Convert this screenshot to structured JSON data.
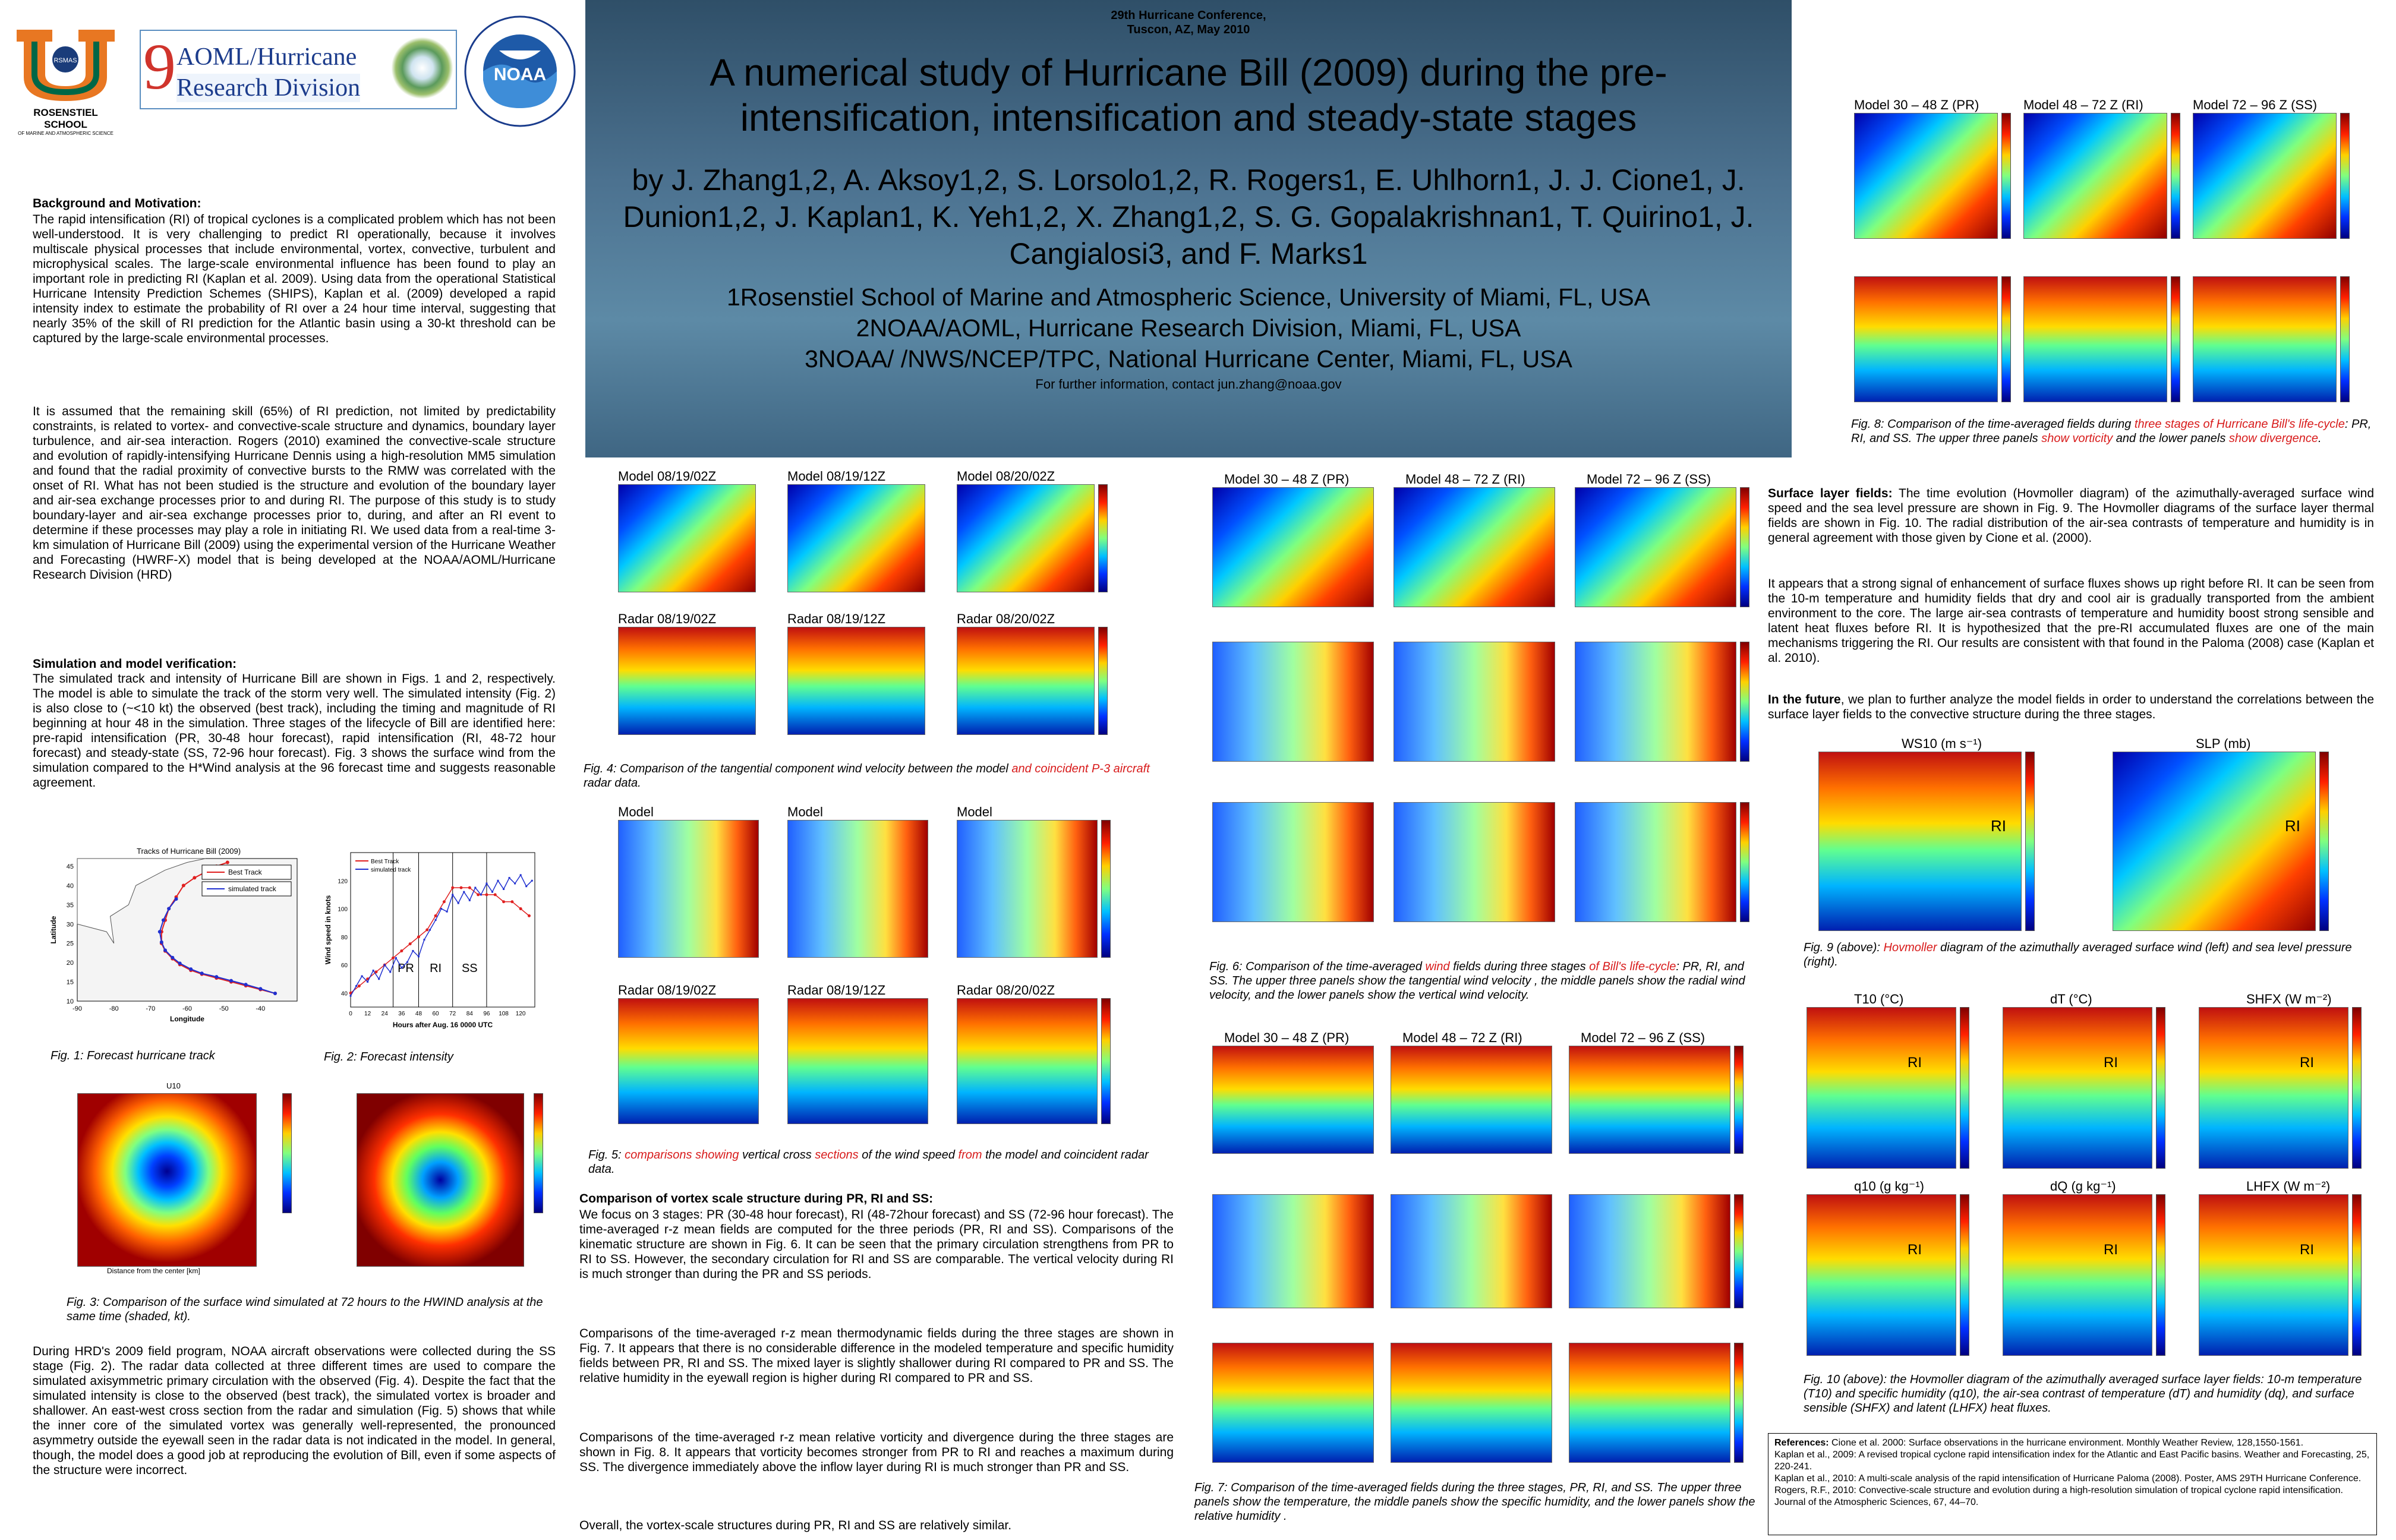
{
  "header": {
    "conference_line1": "29th Hurricane Conference,",
    "conference_line2": "Tuscon, AZ, May 2010",
    "title_line1": "A numerical study of Hurricane Bill (2009) during the pre-",
    "title_line2": "intensification, intensification and steady-state stages",
    "authors_line1": "by  J. Zhang1,2, A. Aksoy1,2, S. Lorsolo1,2, R. Rogers1, E. Uhlhorn1, J. J. Cione1, J.",
    "authors_line2": "Dunion1,2, J. Kaplan1, K. Yeh1,2, X. Zhang1,2, S. G. Gopalakrishnan1, T. Quirino1, J.",
    "authors_line3": "Cangialosi3, and F. Marks1",
    "aff1": "1Rosenstiel School of Marine and Atmospheric Science, University of Miami, FL, USA",
    "aff2": "2NOAA/AOML, Hurricane Research Division, Miami, FL, USA",
    "aff3": "3NOAA/ /NWS/NCEP/TPC, National Hurricane Center, Miami, FL, USA",
    "contact": "For further information, contact jun.zhang@noaa.gov"
  },
  "logos": {
    "rsmas_text": "RSMAS",
    "rosenstiel": "ROSENSTIEL SCHOOL",
    "rosenstiel_sub": "OF MARINE AND ATMOSPHERIC SCIENCE",
    "aoml_line1": "AOML/Hurricane",
    "aoml_line2": "Research Division",
    "noaa": "NOAA"
  },
  "left": {
    "bg_heading": "Background and  Motivation:",
    "bg_p1": "The rapid intensification (RI) of tropical cyclones  is a complicated problem which has not been well-understood.  It is very challenging to predict RI operationally, because it involves multiscale physical processes that include environmental, vortex, convective, turbulent and microphysical scales. The large-scale environmental influence has been found to play an important role in predicting RI (Kaplan et al. 2009). Using data  from the operational Statistical Hurricane Intensity Prediction Schemes (SHIPS), Kaplan et al. (2009) developed a rapid intensity index to estimate the probability of RI over a 24 hour time interval, suggesting that nearly 35% of the skill of RI prediction for the Atlantic basin using a 30-kt threshold can be captured by the large-scale  environmental processes.",
    "bg_p2": "It is assumed that the remaining skill (65%) of RI prediction, not limited by predictability constraints, is related to vortex- and convective-scale structure and dynamics, boundary layer turbulence, and air-sea interaction. Rogers (2010) examined the convective-scale structure and evolution of rapidly-intensifying Hurricane Dennis using a high-resolution MM5 simulation and found that the radial proximity of convective bursts to the RMW was correlated with the onset of RI. What has not been studied is the structure and evolution of the boundary layer and air-sea exchange processes prior to and during RI. The purpose of this study is to study boundary-layer and air-sea exchange processes prior to, during, and after an RI event to determine if these processes may play a role in initiating RI. We used data from a real-time 3-km simulation of Hurricane Bill (2009) using the experimental version of the Hurricane Weather and Forecasting (HWRF-X) model that is being developed at the NOAA/AOML/Hurricane Research Division (HRD)",
    "sim_heading": "Simulation and model verification:",
    "sim_p": "The simulated track and intensity of Hurricane Bill are shown in Figs. 1 and 2, respectively.  The model is able to simulate the track of the storm very well. The simulated intensity (Fig. 2) is also close to (~<10 kt) the observed (best track), including the timing and magnitude of RI beginning at hour 48 in the simulation. Three stages of the lifecycle of Bill are identified here: pre-rapid intensification (PR, 30-48 hour forecast), rapid intensification (RI, 48-72 hour forecast) and steady-state (SS, 72-96 hour forecast). Fig. 3 shows the surface wind from the simulation compared to the H*Wind analysis at the 96 forecast time and suggests reasonable agreement.",
    "fig1_cap": "Fig. 1: Forecast hurricane track",
    "fig2_cap": "Fig. 2: Forecast intensity",
    "fig3_cap": "Fig. 3: Comparison of the surface wind  simulated at 72 hours to the HWIND analysis at the same time (shaded, kt).",
    "hrd_p": "During HRD's 2009 field program, NOAA aircraft observations were collected during the SS stage (Fig. 2). The radar data collected at three different times are used to compare the simulated axisymmetric primary circulation with the observed (Fig. 4). Despite the fact that the simulated intensity is close to the observed (best track), the simulated vortex is broader and shallower. An east-west cross section from the radar and simulation (Fig. 5) shows that while the inner core of the simulated vortex was generally well-represented, the pronounced asymmetry outside the eyewall seen in the radar data is not indicated in the model. In general, though, the model does a good job at reproducing the evolution of Bill, even if some aspects of the structure were incorrect.",
    "fig1_title": "Tracks of Hurricane Bill (2009)",
    "fig1_legend_best": "Best Track",
    "fig1_legend_sim": "simulated track",
    "fig1_xlabel": "Longitude",
    "fig1_ylabel": "Latitude",
    "fig2_ylabel": "Wind speed in knots",
    "fig2_xlabel": "Hours after Aug. 16 0000 UTC",
    "fig2_pr": "PR",
    "fig2_ri": "RI",
    "fig2_ss": "SS",
    "fig3_title": "U10",
    "fig3_xlabel": "Distance from the center [km]"
  },
  "fig1_chart": {
    "type": "line",
    "title": "Tracks of Hurricane Bill (2009)",
    "xlabel": "Longitude",
    "ylabel": "Latitude",
    "xticks": [
      "-90",
      "-80",
      "-70",
      "-60",
      "-50",
      "-40"
    ],
    "yticks": [
      "10",
      "15",
      "20",
      "25",
      "30",
      "35",
      "40",
      "45"
    ],
    "xlim": [
      -90,
      -30
    ],
    "ylim": [
      10,
      47
    ],
    "series": [
      {
        "name": "Best Track",
        "color": "#e02020",
        "x": [
          -36,
          -40,
          -44,
          -48,
          -52,
          -56,
          -59,
          -62,
          -64,
          -66,
          -67,
          -67,
          -66,
          -65,
          -63,
          -61,
          -58,
          -55,
          -52,
          -49
        ],
        "y": [
          12,
          13,
          14,
          15,
          16,
          17,
          18,
          19.5,
          21,
          23,
          25,
          28,
          31,
          34,
          37,
          40,
          42,
          43.5,
          45,
          46
        ]
      },
      {
        "name": "simulated track",
        "color": "#2030d0",
        "x": [
          -36,
          -40,
          -44,
          -48,
          -52,
          -56,
          -59,
          -62,
          -64,
          -66,
          -67,
          -67.5,
          -66.5,
          -65,
          -63
        ],
        "y": [
          12,
          13.2,
          14.3,
          15.3,
          16.3,
          17.2,
          18.3,
          19.8,
          21.3,
          23.2,
          25.3,
          28,
          31,
          34,
          36.5
        ]
      }
    ]
  },
  "fig2_chart": {
    "type": "line",
    "xlabel": "Hours after Aug. 16 0000 UTC",
    "ylabel": "Wind speed in knots",
    "xlim": [
      0,
      130
    ],
    "ylim": [
      30,
      140
    ],
    "xticks": [
      "0",
      "12",
      "24",
      "36",
      "48",
      "60",
      "72",
      "84",
      "96",
      "108",
      "120"
    ],
    "yticks": [
      "40",
      "60",
      "80",
      "100",
      "120"
    ],
    "series": [
      {
        "name": "Best Track",
        "color": "#e02020",
        "x": [
          0,
          6,
          12,
          18,
          24,
          30,
          36,
          42,
          48,
          54,
          60,
          66,
          72,
          78,
          84,
          90,
          96,
          102,
          108,
          114,
          120,
          126
        ],
        "y": [
          40,
          45,
          50,
          55,
          60,
          65,
          70,
          75,
          80,
          85,
          95,
          105,
          115,
          115,
          115,
          110,
          110,
          110,
          105,
          105,
          100,
          95
        ]
      },
      {
        "name": "simulated track",
        "color": "#2030d0",
        "x": [
          0,
          4,
          8,
          12,
          16,
          20,
          24,
          28,
          32,
          36,
          40,
          44,
          48,
          52,
          56,
          60,
          64,
          68,
          72,
          76,
          80,
          84,
          88,
          92,
          96,
          100,
          104,
          108,
          112,
          116,
          120,
          124,
          128
        ],
        "y": [
          38,
          45,
          52,
          48,
          56,
          50,
          60,
          55,
          65,
          58,
          62,
          70,
          66,
          78,
          85,
          92,
          100,
          98,
          110,
          104,
          112,
          106,
          115,
          110,
          118,
          112,
          120,
          114,
          122,
          118,
          124,
          116,
          120
        ]
      }
    ]
  },
  "middle": {
    "fig4_labels": [
      "Model 08/19/02Z",
      "Model 08/19/12Z",
      "Model 08/20/02Z",
      "Radar 08/19/02Z",
      "Radar 08/19/12Z",
      "Radar 08/20/02Z"
    ],
    "fig4_cap_a": "Fig. 4: Comparison  of the tangential component wind velocity between the model ",
    "fig4_cap_b": "and coincident P-3 aircraft",
    "fig4_cap_c": " radar data.",
    "fig5_labels": [
      "Model",
      "Model",
      "Model",
      "Radar 08/19/02Z",
      "Radar 08/19/12Z",
      "Radar 08/20/02Z"
    ],
    "fig5_cap_a": "Fig. 5: ",
    "fig5_cap_b": "comparisons showing",
    "fig5_cap_c": " vertical cross ",
    "fig5_cap_d": "sections",
    "fig5_cap_e": " of the wind speed ",
    "fig5_cap_f": "from",
    "fig5_cap_g": " the model and coincident radar data.",
    "cmp_heading": "Comparison of  vortex scale structure  during PR, RI and SS:",
    "cmp_p1": "We focus on  3 stages: PR (30-48 hour forecast), RI (48-72hour forecast) and SS (72-96 hour forecast).  The time-averaged r-z mean fields are computed for the three periods (PR, RI and SS).  Comparisons of the kinematic structure are shown in Fig. 6. It can be seen that the primary circulation strengthens from PR to RI to SS. However, the secondary circulation for RI and SS are comparable. The vertical velocity during RI is much stronger than during the PR and SS periods.",
    "cmp_p2": "Comparisons of the time-averaged r-z mean thermodynamic fields during the three stages are shown in Fig. 7. It appears that there is no considerable difference in the modeled temperature and specific humidity fields between PR, RI and SS. The mixed layer is slightly shallower during RI compared to PR and SS. The relative humidity in the eyewall region is higher during RI compared to PR and SS.",
    "cmp_p3": "Comparisons of the time-averaged r-z mean relative vorticity and divergence during the three stages are shown in Fig. 8. It appears that vorticity becomes stronger from PR to RI and reaches a maximum during SS. The divergence immediately above the inflow layer during RI is much stronger than PR and SS.",
    "cmp_p4": "Overall, the vortex-scale structures during PR, RI and SS are relatively similar."
  },
  "center_right": {
    "stage_labels": [
      "Model 30 – 48 Z (PR)",
      "Model 48 – 72 Z (RI)",
      "Model 72 – 96 Z (SS)"
    ],
    "fig6_cap_a": "Fig. 6: Comparison of the time-averaged ",
    "fig6_cap_b": "wind",
    "fig6_cap_c": " fields during three stages ",
    "fig6_cap_d": "of Bill's life-cycle",
    "fig6_cap_e": ": PR, RI, and SS. The  upper three panels show the tangential wind velocity , the middle panels show the radial wind velocity, and the lower panels show the vertical wind velocity.",
    "fig7_cap": "Fig. 7: Comparison of the time-averaged  fields during the three stages, PR, RI, and SS. The upper three panels show the temperature, the middle panels show the specific humidity, and the lower panels show the relative humidity ."
  },
  "right": {
    "stage_labels": [
      "Model 30 – 48 Z (PR)",
      "Model 48 – 72 Z (RI)",
      "Model 72 – 96 Z (SS)"
    ],
    "fig8_cap_a": "Fig. 8: Comparison of the time-averaged  fields during ",
    "fig8_cap_b": "three stages of Hurricane Bill's life-cycle",
    "fig8_cap_c": ": PR, RI, and SS. The upper three panels ",
    "fig8_cap_d": "show vorticity",
    "fig8_cap_e": " and the lower panels ",
    "fig8_cap_f": "show divergence",
    "fig8_cap_g": ".",
    "sl_heading": "Surface layer fields:",
    "sl_p1": " The time evolution (Hovmoller  diagram) of the azimuthally-averaged surface wind speed and the sea level pressure are shown in Fig. 9.  The Hovmoller diagrams of the surface layer thermal fields are shown in Fig. 10. The radial distribution of the air-sea contrasts of temperature and humidity is in general agreement with those given by Cione et al. (2000).",
    "sl_p2": "It appears that a strong signal of enhancement of surface fluxes shows up right before RI. It can be seen from the 10-m temperature and humidity fields that dry and cool air is gradually transported from the ambient environment to the core. The large air-sea contrasts of temperature and humidity boost strong sensible and latent heat fluxes before RI. It is hypothesized that the pre-RI accumulated fluxes are one of the main mechanisms triggering the RI. Our results are consistent with that found in the Paloma (2008) case (Kaplan et al. 2010).",
    "future_heading": "In the future",
    "future_p": ", we plan to further analyze the model fields in order to understand the correlations between the surface layer fields to the convective structure during the three stages.",
    "fig9_titles": [
      "WS10 (m s⁻¹)",
      "SLP (mb)"
    ],
    "ri_label": "RI",
    "fig9_cap_a": "Fig. 9 (above): ",
    "fig9_cap_b": "Hovmoller",
    "fig9_cap_c": " diagram of the azimuthally averaged surface wind (left) and sea level pressure (right).",
    "fig10_titles": [
      "T10 (°C)",
      "dT (°C)",
      "SHFX (W m⁻²)",
      "q10 (g kg⁻¹)",
      "dQ (g kg⁻¹)",
      "LHFX (W m⁻²)"
    ],
    "fig10_cap": "Fig. 10 (above): the Hovmoller diagram of the azimuthally averaged surface layer fields: 10-m temperature (T10) and specific humidity (q10), the air-sea contrast of temperature (dT) and humidity (dq), and surface sensible (SHFX) and latent (LHFX) heat fluxes.",
    "ref_heading": "References:",
    "ref1": " Cione et al. 2000: Surface observations in the hurricane environment. Monthly Weather Review, 128,1550-1561.",
    "ref2": "Kaplan et al., 2009: A revised tropical cyclone rapid intensification index for the Atlantic and East Pacific basins. Weather and Forecasting, 25, 220-241.",
    "ref3": "Kaplan et al., 2010:  A multi-scale analysis of the rapid intensification of Hurricane Paloma (2008).  Poster, AMS 29TH Hurricane Conference.",
    "ref4": "Rogers, R.F., 2010:  Convective-scale structure and evolution during a high-resolution simulation of tropical cyclone rapid intensification. Journal of the Atmospheric Sciences, 67, 44–70."
  }
}
